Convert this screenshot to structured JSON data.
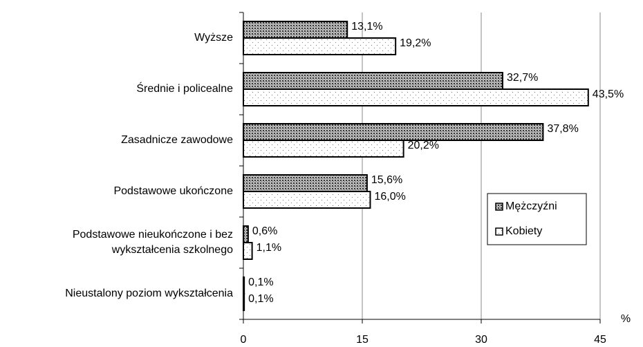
{
  "chart_data": {
    "type": "bar",
    "orientation": "horizontal",
    "categories": [
      "Wyższe",
      "Średnie i policealne",
      "Zasadnicze zawodowe",
      "Podstawowe ukończone",
      "Podstawowe nieukończone i bez\nwykształcenia szkolnego",
      "Nieustalony poziom wykształcenia"
    ],
    "series": [
      {
        "name": "Mężczyźni",
        "color": "#555555",
        "values": [
          13.1,
          32.7,
          37.8,
          15.6,
          0.6,
          0.1
        ],
        "value_labels": [
          "13,1%",
          "32,7%",
          "37,8%",
          "15,6%",
          "0,6%",
          "0,1%"
        ]
      },
      {
        "name": "Kobiety",
        "color": "#ffffff",
        "values": [
          19.2,
          43.5,
          20.2,
          16.0,
          1.1,
          0.1
        ],
        "value_labels": [
          "19,2%",
          "43,5%",
          "20,2%",
          "16,0%",
          "1,1%",
          "0,1%"
        ]
      }
    ],
    "xlabel": "%",
    "xlim": [
      0,
      45
    ],
    "xticks": [
      0,
      15,
      30,
      45
    ],
    "grid": true,
    "legend": "right"
  }
}
